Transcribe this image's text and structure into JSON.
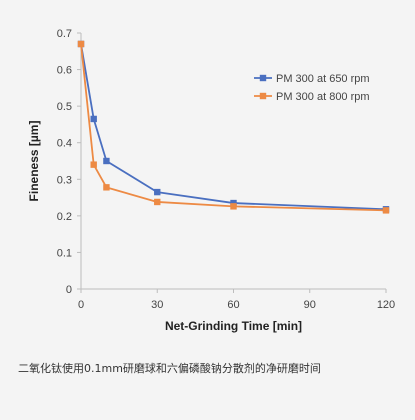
{
  "chart_data": {
    "type": "line",
    "title": "",
    "xlabel": "Net-Grinding Time [min]",
    "ylabel": "Fineness [µm]",
    "xlim": [
      0,
      120
    ],
    "ylim": [
      0,
      0.7
    ],
    "x_ticks": [
      0,
      30,
      60,
      90,
      120
    ],
    "y_ticks": [
      0,
      0.1,
      0.2,
      0.3,
      0.4,
      0.5,
      0.6,
      0.7
    ],
    "grid": false,
    "legend_position": "top-right",
    "series": [
      {
        "name": "PM 300 at 650 rpm",
        "color": "#4a6fc0",
        "marker": "square",
        "x": [
          0,
          5,
          10,
          30,
          60,
          120
        ],
        "y": [
          0.67,
          0.465,
          0.35,
          0.265,
          0.235,
          0.218
        ]
      },
      {
        "name": "PM 300 at 800 rpm",
        "color": "#ed8a44",
        "marker": "square",
        "x": [
          0,
          5,
          10,
          30,
          60,
          120
        ],
        "y": [
          0.67,
          0.34,
          0.278,
          0.238,
          0.226,
          0.215
        ]
      }
    ]
  },
  "caption": "二氧化钛使用0.1mm研磨球和六偏磷酸钠分散剂的净研磨时间"
}
